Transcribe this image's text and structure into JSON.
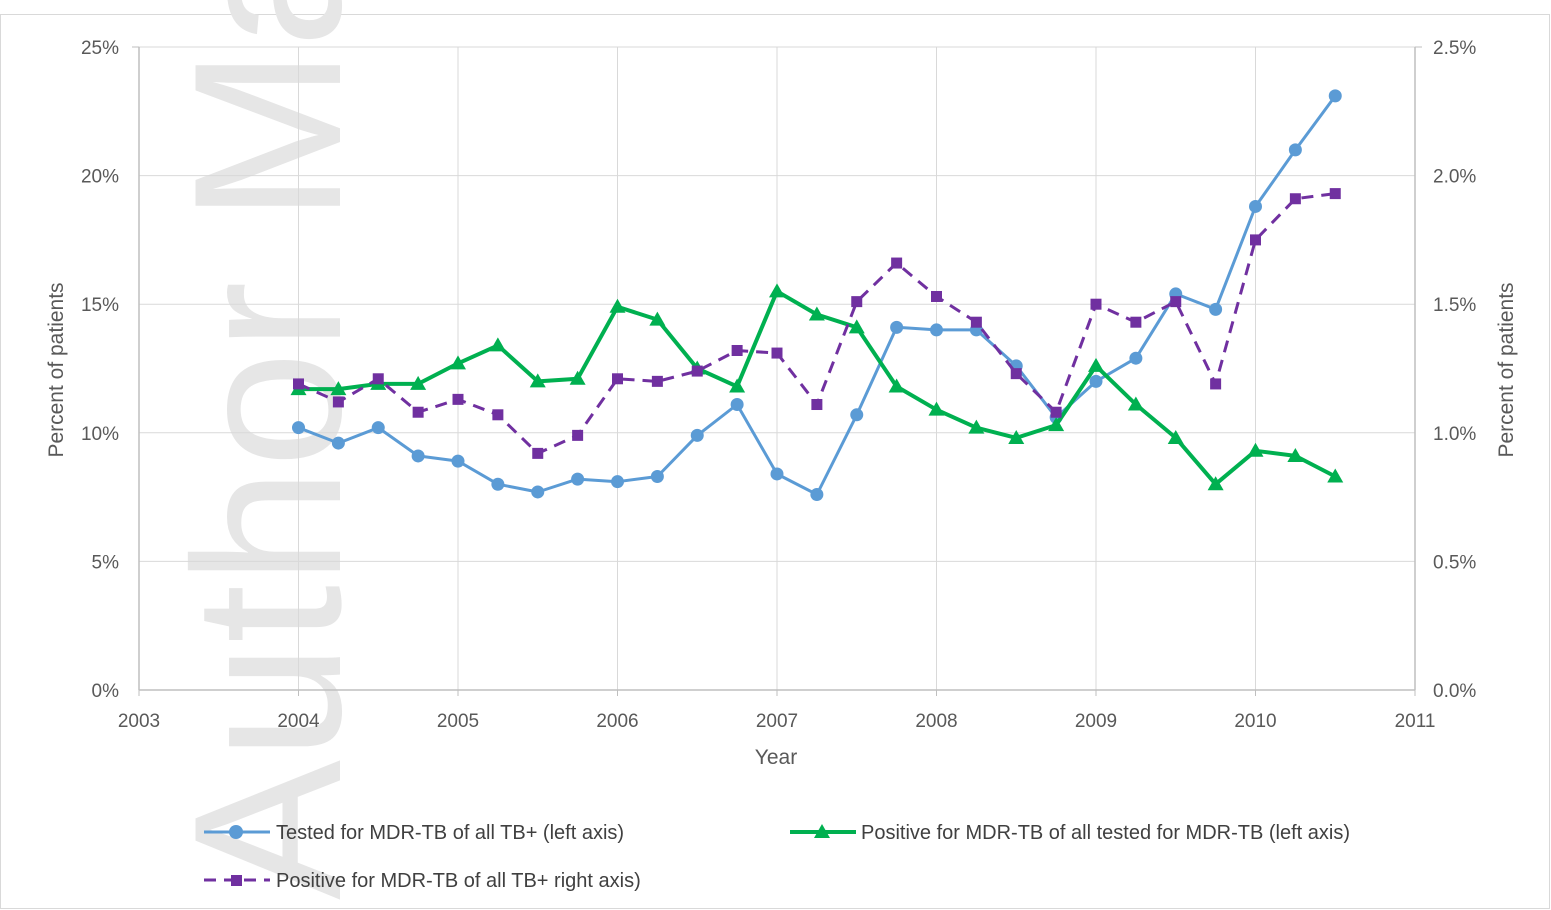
{
  "watermark": "Author Manuscript",
  "chart_data": {
    "type": "line",
    "xlabel": "Year",
    "ylabel_left": "Percent of patients",
    "ylabel_right": "Percent of patients",
    "xlim": [
      2003,
      2011
    ],
    "xticks": [
      "2003",
      "2004",
      "2005",
      "2006",
      "2007",
      "2008",
      "2009",
      "2010",
      "2011"
    ],
    "ylim_left": [
      0,
      25
    ],
    "yticks_left": [
      "0%",
      "5%",
      "10%",
      "15%",
      "20%",
      "25%"
    ],
    "ylim_right": [
      0,
      2.5
    ],
    "yticks_right": [
      "0.0%",
      "0.5%",
      "1.0%",
      "1.5%",
      "2.0%",
      "2.5%"
    ],
    "grid": true,
    "legend_position": "bottom",
    "x": [
      2004,
      2004.25,
      2004.5,
      2004.75,
      2005,
      2005.25,
      2005.5,
      2005.75,
      2006,
      2006.25,
      2006.5,
      2006.75,
      2007,
      2007.25,
      2007.5,
      2007.75,
      2008,
      2008.25,
      2008.5,
      2008.75,
      2009,
      2009.25,
      2009.5,
      2009.75,
      2010,
      2010.25,
      2010.5
    ],
    "series": [
      {
        "name": "Tested for MDR-TB of all TB+ (left axis)",
        "axis": "left",
        "color": "#5b9bd5",
        "marker": "circle",
        "dash": "solid",
        "values": [
          10.2,
          9.6,
          10.2,
          9.1,
          8.9,
          8.0,
          7.7,
          8.2,
          8.1,
          8.3,
          9.9,
          11.1,
          8.4,
          7.6,
          10.7,
          14.1,
          14.0,
          14.0,
          12.6,
          10.6,
          12.0,
          12.9,
          15.4,
          14.8,
          18.8,
          21.0,
          23.1
        ]
      },
      {
        "name": "Positive for MDR-TB of all tested for MDR-TB  (left axis)",
        "axis": "left",
        "color": "#00b050",
        "marker": "triangle",
        "dash": "solid",
        "values": [
          11.7,
          11.7,
          11.9,
          11.9,
          12.7,
          13.4,
          12.0,
          12.1,
          14.9,
          14.4,
          12.5,
          11.8,
          15.5,
          14.6,
          14.1,
          11.8,
          10.9,
          10.2,
          9.8,
          10.3,
          12.6,
          11.1,
          9.8,
          8.0,
          9.3,
          9.1,
          8.3
        ]
      },
      {
        "name": "Positive for MDR-TB of all TB+ right axis)",
        "axis": "right",
        "color": "#7030a0",
        "marker": "square",
        "dash": "dashed",
        "values": [
          1.19,
          1.12,
          1.21,
          1.08,
          1.13,
          1.07,
          0.92,
          0.99,
          1.21,
          1.2,
          1.24,
          1.32,
          1.31,
          1.11,
          1.51,
          1.66,
          1.53,
          1.43,
          1.23,
          1.08,
          1.5,
          1.43,
          1.51,
          1.19,
          1.75,
          1.91,
          1.93
        ]
      }
    ]
  }
}
